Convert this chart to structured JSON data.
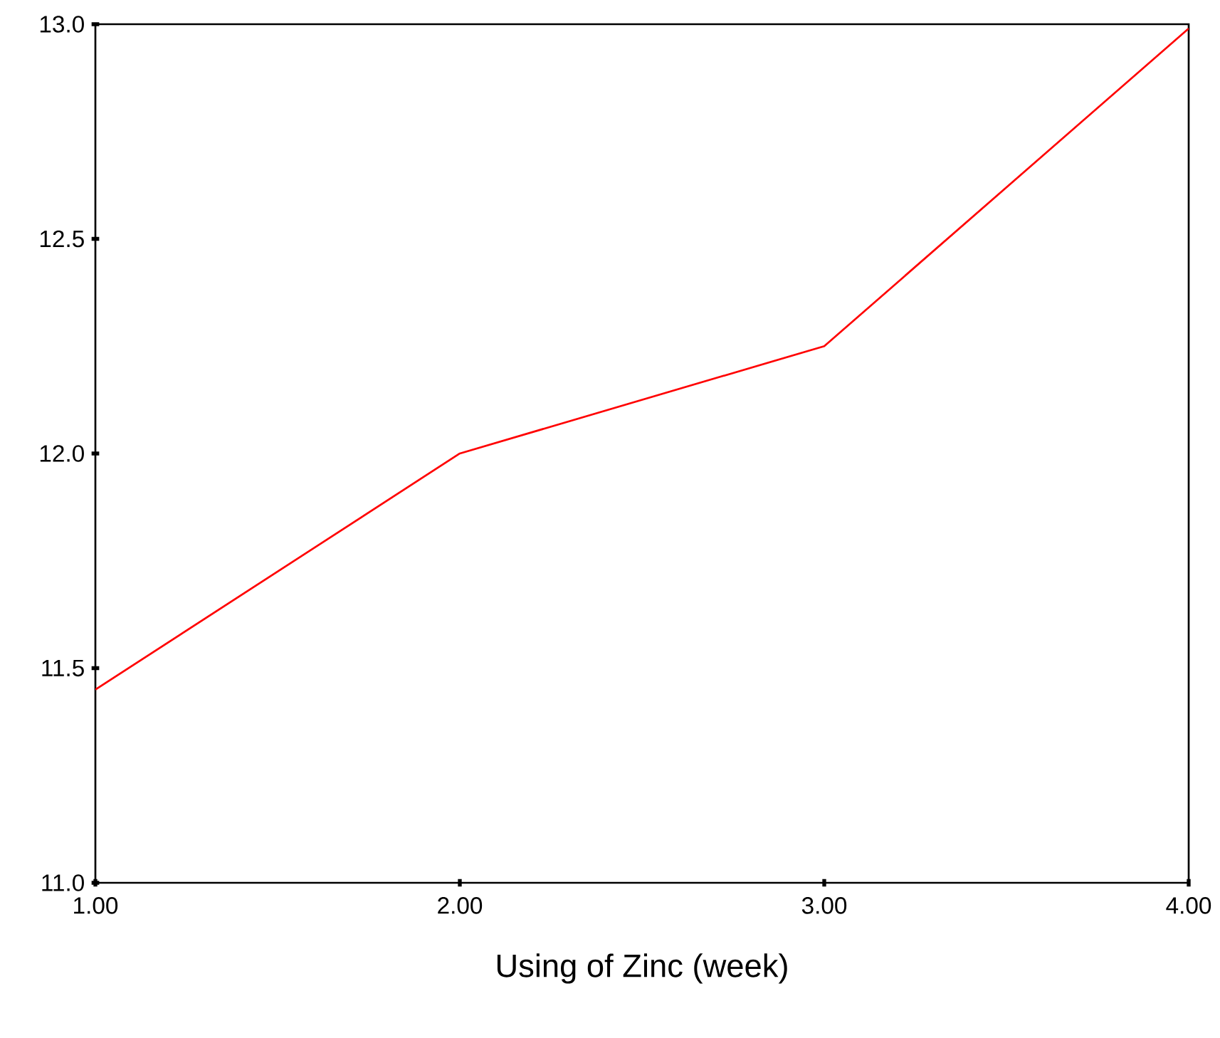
{
  "chart_data": {
    "type": "line",
    "xlabel": "Using of Zinc (week)",
    "x": [
      1,
      2,
      3,
      4
    ],
    "series": [
      {
        "color": "#ff0000",
        "values": [
          11.45,
          12.0,
          12.25,
          12.99
        ]
      }
    ],
    "xlim": [
      1,
      4
    ],
    "xticks": [
      {
        "value": 1,
        "label": "1.00"
      },
      {
        "value": 2,
        "label": "2.00"
      },
      {
        "value": 3,
        "label": "3.00"
      },
      {
        "value": 4,
        "label": "4.00"
      }
    ],
    "ylim": [
      11.0,
      13.0
    ],
    "yticks": [
      {
        "value": 11.0,
        "label": "11.0"
      },
      {
        "value": 11.5,
        "label": "11.5"
      },
      {
        "value": 12.0,
        "label": "12.0"
      },
      {
        "value": 12.5,
        "label": "12.5"
      },
      {
        "value": 13.0,
        "label": "13.0"
      }
    ],
    "grid": false,
    "marker": "none",
    "line_style": "solid"
  }
}
